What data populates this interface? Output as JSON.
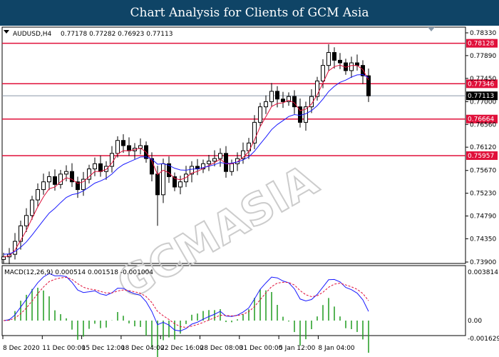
{
  "title": "Chart Analysis for Clients of GCM Asia",
  "header": {
    "symbol": "AUDUSD,H4",
    "ohlc": "0.77178 0.77282 0.76923 0.77113"
  },
  "macd_header": "MACD(12,26,9) 0.000514 0.001518 -0.001004",
  "watermark": "GCMASIA",
  "colors": {
    "title_bg": "#0f4466",
    "level": "#e0103a",
    "ma_fast": "#e0103a",
    "ma_slow": "#1a1aff",
    "macd_hist": "#1f9a1f",
    "macd_line": "#1a1aff",
    "signal": "#e0103a"
  },
  "price_axis": [
    "0.78330",
    "0.77890",
    "0.77450",
    "0.77000",
    "0.76560",
    "0.76120",
    "0.75670",
    "0.75230",
    "0.74790",
    "0.74350",
    "0.73900"
  ],
  "levels": [
    "0.78128",
    "0.77346",
    "0.76664",
    "0.75957"
  ],
  "current_price": "0.77113",
  "macd_axis": [
    "0.003814",
    "0.00",
    "-0.001629"
  ],
  "time_axis": [
    "8 Dec 2020",
    "11 Dec 00:00",
    "15 Dec 12:00",
    "18 Dec 04:00",
    "22 Dec 16:00",
    "28 Dec 08:00",
    "31 Dec 00:00",
    "5 Jan 12:00",
    "8 Jan 04:00"
  ],
  "closes": [
    0.74,
    0.7405,
    0.743,
    0.746,
    0.748,
    0.751,
    0.753,
    0.7545,
    0.7555,
    0.754,
    0.756,
    0.7565,
    0.7545,
    0.753,
    0.755,
    0.757,
    0.758,
    0.7565,
    0.7575,
    0.76,
    0.7625,
    0.7615,
    0.7605,
    0.761,
    0.7615,
    0.759,
    0.756,
    0.752,
    0.758,
    0.7555,
    0.7535,
    0.7545,
    0.756,
    0.7575,
    0.757,
    0.758,
    0.7585,
    0.759,
    0.76,
    0.7565,
    0.758,
    0.759,
    0.7605,
    0.762,
    0.766,
    0.769,
    0.77,
    0.772,
    0.7705,
    0.77,
    0.771,
    0.769,
    0.766,
    0.769,
    0.771,
    0.774,
    0.777,
    0.7795,
    0.778,
    0.7775,
    0.776,
    0.7775,
    0.777,
    0.775,
    0.77113
  ]
}
